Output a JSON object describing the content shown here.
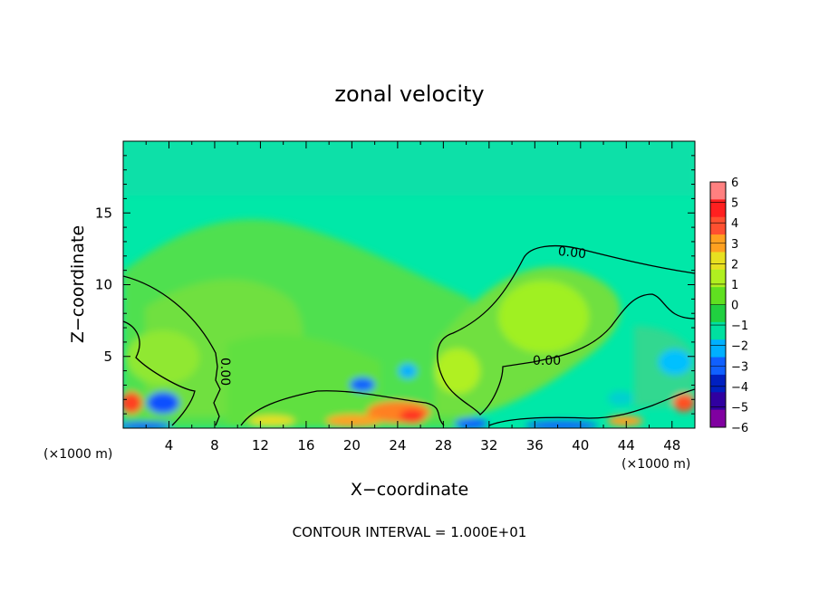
{
  "chart_data": {
    "type": "heatmap",
    "title": "zonal velocity",
    "xlabel": "X−coordinate",
    "ylabel": "Z−coordinate",
    "x_unit_left": "(×1000 m)",
    "x_unit_right": "(×1000 m)",
    "xlim": [
      0,
      50
    ],
    "ylim": [
      0,
      20
    ],
    "xticks": [
      "4",
      "8",
      "12",
      "16",
      "20",
      "24",
      "28",
      "32",
      "36",
      "40",
      "44",
      "48"
    ],
    "yticks": [
      "5",
      "10",
      "15"
    ],
    "colorbar": {
      "levels": [
        "6",
        "5",
        "4",
        "3",
        "2",
        "1",
        "0",
        "−1",
        "−2",
        "−3",
        "−4",
        "−5",
        "−6"
      ],
      "colors": [
        "#ff8080",
        "#ff2020",
        "#ff5030",
        "#ffa020",
        "#e8e020",
        "#b0f020",
        "#60e020",
        "#20d040",
        "#00e0a0",
        "#00b0ff",
        "#1060ff",
        "#0020c0",
        "#3000a0",
        "#8000a0"
      ]
    },
    "contour_level": "0.00",
    "contour_labels": [
      "0.00",
      "0.00",
      "0.00"
    ],
    "footnote": "CONTOUR INTERVAL = 1.000E+01"
  }
}
